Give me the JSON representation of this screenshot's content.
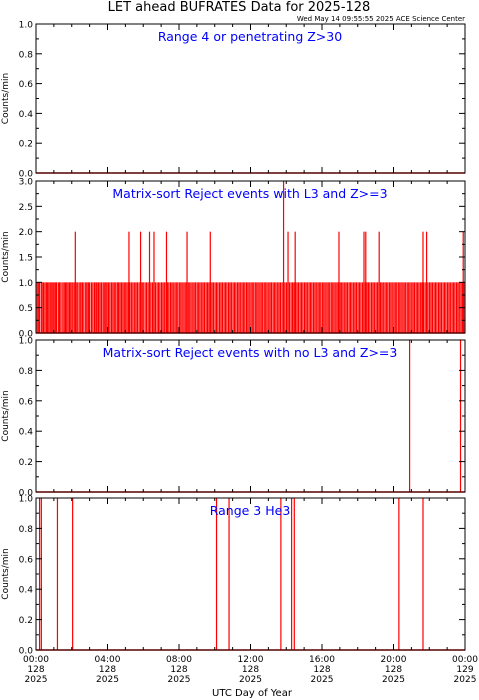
{
  "title": "LET ahead BUFRATES Data for 2025-128",
  "timestamp": "Wed May 14 09:55:55 2025 ACE Science Center",
  "xlabel": "UTC Day of Year",
  "colors": {
    "trace": "#ff0000",
    "annotation": "#0000ff",
    "axes": "#000000",
    "background": "#ffffff"
  },
  "chart_data": [
    {
      "type": "line",
      "title": "Range 4 or  penetrating Z>30",
      "ylabel": "Counts/min",
      "ylim": [
        0,
        1.0
      ],
      "yticks": [
        "0.0",
        "0.2",
        "0.4",
        "0.6",
        "0.8",
        "1.0"
      ],
      "spikes": []
    },
    {
      "type": "line",
      "title": "Matrix-sort Reject events with L3 and Z>=3",
      "ylabel": "Counts/min",
      "ylim": [
        0,
        3.0
      ],
      "yticks": [
        "0.0",
        "0.5",
        "1.0",
        "1.5",
        "2.0",
        "2.5",
        "3.0"
      ],
      "spikes": [
        [
          0.07,
          1
        ],
        [
          0.15,
          1
        ],
        [
          0.2,
          1
        ],
        [
          0.3,
          1
        ],
        [
          0.38,
          1
        ],
        [
          0.42,
          1
        ],
        [
          0.5,
          1
        ],
        [
          0.58,
          1
        ],
        [
          0.65,
          1
        ],
        [
          0.72,
          1
        ],
        [
          0.8,
          1
        ],
        [
          0.88,
          1
        ],
        [
          0.95,
          1
        ],
        [
          1.02,
          1
        ],
        [
          1.1,
          1
        ],
        [
          1.15,
          1
        ],
        [
          1.25,
          1
        ],
        [
          1.32,
          1
        ],
        [
          1.4,
          1
        ],
        [
          1.5,
          1
        ],
        [
          1.58,
          1
        ],
        [
          1.65,
          1
        ],
        [
          1.72,
          1
        ],
        [
          1.8,
          1
        ],
        [
          1.88,
          1
        ],
        [
          1.95,
          1
        ],
        [
          2.03,
          1
        ],
        [
          2.12,
          1
        ],
        [
          2.2,
          1
        ],
        [
          2.28,
          1
        ],
        [
          2.35,
          1
        ],
        [
          2.45,
          1
        ],
        [
          2.52,
          1
        ],
        [
          2.6,
          1
        ],
        [
          2.68,
          1
        ],
        [
          2.78,
          1
        ],
        [
          2.85,
          1
        ],
        [
          2.93,
          1
        ],
        [
          3.0,
          1
        ],
        [
          3.1,
          1
        ],
        [
          3.18,
          1
        ],
        [
          3.27,
          1
        ],
        [
          3.35,
          1
        ],
        [
          3.42,
          1
        ],
        [
          3.5,
          1
        ],
        [
          3.58,
          1
        ],
        [
          3.66,
          1
        ],
        [
          3.75,
          1
        ],
        [
          3.82,
          1
        ],
        [
          3.9,
          1
        ],
        [
          3.97,
          1
        ],
        [
          4.05,
          1
        ],
        [
          4.13,
          1
        ],
        [
          4.22,
          1
        ],
        [
          4.3,
          1
        ],
        [
          4.38,
          1
        ],
        [
          4.46,
          1
        ],
        [
          4.55,
          1
        ],
        [
          4.62,
          1
        ],
        [
          4.7,
          1
        ],
        [
          4.78,
          1
        ],
        [
          4.86,
          1
        ],
        [
          4.94,
          1
        ],
        [
          5.02,
          1
        ],
        [
          5.1,
          1
        ],
        [
          5.18,
          1
        ],
        [
          5.26,
          1
        ],
        [
          5.35,
          1
        ],
        [
          5.43,
          1
        ],
        [
          5.52,
          1
        ],
        [
          5.6,
          1
        ],
        [
          5.68,
          1
        ],
        [
          5.77,
          1
        ],
        [
          5.85,
          1
        ],
        [
          5.93,
          1
        ],
        [
          6.0,
          1
        ],
        [
          6.1,
          1
        ],
        [
          6.18,
          1
        ],
        [
          6.27,
          1
        ],
        [
          6.35,
          1
        ],
        [
          6.43,
          1
        ],
        [
          6.52,
          1
        ],
        [
          6.6,
          1
        ],
        [
          6.68,
          1
        ],
        [
          6.77,
          1
        ],
        [
          6.85,
          1
        ],
        [
          6.93,
          1
        ],
        [
          7.02,
          1
        ],
        [
          7.1,
          1
        ],
        [
          7.18,
          1
        ],
        [
          7.27,
          1
        ],
        [
          7.35,
          1
        ],
        [
          7.43,
          1
        ],
        [
          7.52,
          1
        ],
        [
          7.6,
          1
        ],
        [
          7.68,
          1
        ],
        [
          7.77,
          1
        ],
        [
          7.85,
          1
        ],
        [
          7.93,
          1
        ],
        [
          8.02,
          1
        ],
        [
          8.1,
          1
        ],
        [
          8.18,
          1
        ],
        [
          8.27,
          1
        ],
        [
          8.35,
          1
        ],
        [
          8.43,
          1
        ],
        [
          8.52,
          1
        ],
        [
          8.6,
          1
        ],
        [
          8.68,
          1
        ],
        [
          8.77,
          1
        ],
        [
          8.85,
          1
        ],
        [
          8.93,
          1
        ],
        [
          9.02,
          1
        ],
        [
          9.1,
          1
        ],
        [
          9.18,
          1
        ],
        [
          9.27,
          1
        ],
        [
          9.35,
          1
        ],
        [
          9.43,
          1
        ],
        [
          9.52,
          1
        ],
        [
          9.6,
          1
        ],
        [
          9.68,
          1
        ],
        [
          9.77,
          1
        ],
        [
          9.85,
          1
        ],
        [
          9.93,
          1
        ],
        [
          10.02,
          1
        ],
        [
          10.1,
          1
        ],
        [
          10.18,
          1
        ],
        [
          10.27,
          1
        ],
        [
          10.35,
          1
        ],
        [
          10.43,
          1
        ],
        [
          10.52,
          1
        ],
        [
          10.6,
          1
        ],
        [
          10.68,
          1
        ],
        [
          10.77,
          1
        ],
        [
          10.85,
          1
        ],
        [
          10.93,
          1
        ],
        [
          11.02,
          1
        ],
        [
          11.1,
          1
        ],
        [
          11.18,
          1
        ],
        [
          11.27,
          1
        ],
        [
          11.35,
          1
        ],
        [
          11.43,
          1
        ],
        [
          11.52,
          1
        ],
        [
          11.6,
          1
        ],
        [
          11.68,
          1
        ],
        [
          11.77,
          1
        ],
        [
          11.85,
          1
        ],
        [
          11.93,
          1
        ],
        [
          12.02,
          1
        ],
        [
          12.1,
          1
        ],
        [
          12.18,
          1
        ],
        [
          12.27,
          1
        ],
        [
          12.35,
          1
        ],
        [
          12.43,
          1
        ],
        [
          12.52,
          1
        ],
        [
          12.6,
          1
        ],
        [
          12.68,
          1
        ],
        [
          12.77,
          1
        ],
        [
          12.85,
          1
        ],
        [
          12.93,
          1
        ],
        [
          13.02,
          1
        ],
        [
          13.1,
          1
        ],
        [
          13.18,
          1
        ],
        [
          13.27,
          1
        ],
        [
          13.35,
          1
        ],
        [
          13.43,
          1
        ],
        [
          13.52,
          1
        ],
        [
          13.6,
          1
        ],
        [
          13.68,
          1
        ],
        [
          13.77,
          1
        ],
        [
          13.85,
          1
        ],
        [
          13.93,
          1
        ],
        [
          14.02,
          1
        ],
        [
          14.1,
          1
        ],
        [
          14.18,
          1
        ],
        [
          14.27,
          1
        ],
        [
          14.35,
          1
        ],
        [
          14.43,
          1
        ],
        [
          14.52,
          1
        ],
        [
          14.6,
          1
        ],
        [
          14.68,
          1
        ],
        [
          14.77,
          1
        ],
        [
          14.85,
          1
        ],
        [
          14.93,
          1
        ],
        [
          15.02,
          1
        ],
        [
          15.1,
          1
        ],
        [
          15.18,
          1
        ],
        [
          15.27,
          1
        ],
        [
          15.35,
          1
        ],
        [
          15.43,
          1
        ],
        [
          15.52,
          1
        ],
        [
          15.6,
          1
        ],
        [
          15.68,
          1
        ],
        [
          15.77,
          1
        ],
        [
          15.85,
          1
        ],
        [
          15.93,
          1
        ],
        [
          16.02,
          1
        ],
        [
          16.1,
          1
        ],
        [
          16.18,
          1
        ],
        [
          16.27,
          1
        ],
        [
          16.35,
          1
        ],
        [
          16.43,
          1
        ],
        [
          16.52,
          1
        ],
        [
          16.6,
          1
        ],
        [
          16.68,
          1
        ],
        [
          16.77,
          1
        ],
        [
          16.85,
          1
        ],
        [
          16.93,
          1
        ],
        [
          17.02,
          1
        ],
        [
          17.1,
          1
        ],
        [
          17.18,
          1
        ],
        [
          17.27,
          1
        ],
        [
          17.35,
          1
        ],
        [
          17.43,
          1
        ],
        [
          17.52,
          1
        ],
        [
          17.6,
          1
        ],
        [
          17.68,
          1
        ],
        [
          17.77,
          1
        ],
        [
          17.85,
          1
        ],
        [
          17.93,
          1
        ],
        [
          18.02,
          1
        ],
        [
          18.1,
          1
        ],
        [
          18.18,
          1
        ],
        [
          18.27,
          1
        ],
        [
          18.35,
          1
        ],
        [
          18.43,
          1
        ],
        [
          18.52,
          1
        ],
        [
          18.6,
          1
        ],
        [
          18.68,
          1
        ],
        [
          18.77,
          1
        ],
        [
          18.85,
          1
        ],
        [
          18.93,
          1
        ],
        [
          19.02,
          1
        ],
        [
          19.1,
          1
        ],
        [
          19.18,
          1
        ],
        [
          19.27,
          1
        ],
        [
          19.35,
          1
        ],
        [
          19.43,
          1
        ],
        [
          19.52,
          1
        ],
        [
          19.6,
          1
        ],
        [
          19.68,
          1
        ],
        [
          19.77,
          1
        ],
        [
          19.85,
          1
        ],
        [
          19.93,
          1
        ],
        [
          20.02,
          1
        ],
        [
          20.1,
          1
        ],
        [
          20.18,
          1
        ],
        [
          20.27,
          1
        ],
        [
          20.35,
          1
        ],
        [
          20.43,
          1
        ],
        [
          20.52,
          1
        ],
        [
          20.6,
          1
        ],
        [
          20.68,
          1
        ],
        [
          20.77,
          1
        ],
        [
          20.85,
          1
        ],
        [
          20.93,
          1
        ],
        [
          21.02,
          1
        ],
        [
          21.1,
          1
        ],
        [
          21.18,
          1
        ],
        [
          21.27,
          1
        ],
        [
          21.35,
          1
        ],
        [
          21.43,
          1
        ],
        [
          21.52,
          1
        ],
        [
          21.6,
          1
        ],
        [
          21.68,
          1
        ],
        [
          21.77,
          1
        ],
        [
          21.85,
          1
        ],
        [
          21.93,
          1
        ],
        [
          22.02,
          1
        ],
        [
          22.1,
          1
        ],
        [
          22.18,
          1
        ],
        [
          22.27,
          1
        ],
        [
          22.35,
          1
        ],
        [
          22.43,
          1
        ],
        [
          22.52,
          1
        ],
        [
          22.6,
          1
        ],
        [
          22.68,
          1
        ],
        [
          22.77,
          1
        ],
        [
          22.85,
          1
        ],
        [
          22.93,
          1
        ],
        [
          23.02,
          1
        ],
        [
          23.1,
          1
        ],
        [
          23.18,
          1
        ],
        [
          23.27,
          1
        ],
        [
          23.35,
          1
        ],
        [
          23.43,
          1
        ],
        [
          23.52,
          1
        ],
        [
          23.6,
          1
        ],
        [
          23.68,
          1
        ],
        [
          23.77,
          1
        ],
        [
          23.85,
          1
        ],
        [
          23.93,
          1
        ],
        [
          2.2,
          2
        ],
        [
          5.2,
          2
        ],
        [
          5.85,
          2
        ],
        [
          6.35,
          2
        ],
        [
          6.6,
          2
        ],
        [
          7.3,
          2
        ],
        [
          8.45,
          2
        ],
        [
          9.75,
          2
        ],
        [
          13.85,
          3
        ],
        [
          14.1,
          2
        ],
        [
          14.5,
          2
        ],
        [
          16.95,
          2
        ],
        [
          18.35,
          2
        ],
        [
          18.45,
          2
        ],
        [
          19.2,
          2
        ],
        [
          21.65,
          2
        ],
        [
          21.85,
          2
        ],
        [
          23.9,
          2
        ]
      ]
    },
    {
      "type": "line",
      "title": "Matrix-sort Reject events with no L3 and Z>=3",
      "ylabel": "Counts/min",
      "ylim": [
        0,
        1.0
      ],
      "yticks": [
        "0.0",
        "0.2",
        "0.4",
        "0.6",
        "0.8",
        "1.0"
      ],
      "spikes": [
        [
          20.9,
          1
        ],
        [
          23.75,
          1
        ]
      ]
    },
    {
      "type": "line",
      "title": "Range 3 He3",
      "ylabel": "Counts/min",
      "ylim": [
        0,
        1.0
      ],
      "yticks": [
        "0.0",
        "0.2",
        "0.4",
        "0.6",
        "0.8",
        "1.0"
      ],
      "spikes": [
        [
          0.2,
          1
        ],
        [
          0.3,
          1
        ],
        [
          1.2,
          1
        ],
        [
          2.05,
          1
        ],
        [
          10.1,
          1
        ],
        [
          10.8,
          1
        ],
        [
          13.7,
          1
        ],
        [
          14.3,
          1
        ],
        [
          14.45,
          1
        ],
        [
          20.3,
          1
        ],
        [
          21.65,
          1
        ]
      ]
    }
  ],
  "xaxis": {
    "xlim": [
      0,
      24
    ],
    "ticks": [
      {
        "hour": 0,
        "time": "00:00",
        "doy": "128",
        "year": "2025"
      },
      {
        "hour": 4,
        "time": "04:00",
        "doy": "128",
        "year": "2025"
      },
      {
        "hour": 8,
        "time": "08:00",
        "doy": "128",
        "year": "2025"
      },
      {
        "hour": 12,
        "time": "12:00",
        "doy": "128",
        "year": "2025"
      },
      {
        "hour": 16,
        "time": "16:00",
        "doy": "128",
        "year": "2025"
      },
      {
        "hour": 20,
        "time": "20:00",
        "doy": "128",
        "year": "2025"
      },
      {
        "hour": 24,
        "time": "00:00",
        "doy": "129",
        "year": "2025"
      }
    ]
  }
}
